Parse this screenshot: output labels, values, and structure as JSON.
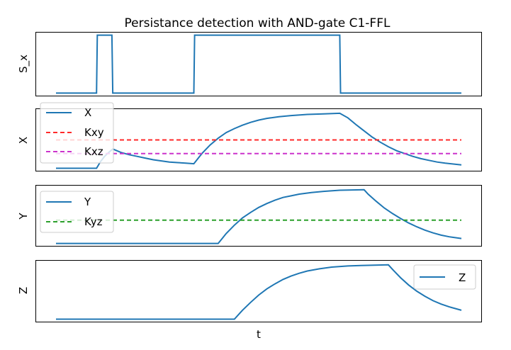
{
  "chart_data": {
    "type": "line",
    "title": "Persistance detection with AND-gate C1-FFL",
    "xlabel": "t",
    "grid": false,
    "x_range": [
      0,
      100
    ],
    "panels": [
      {
        "id": "sx",
        "ylabel": "S_x",
        "ylim": [
          -0.05,
          1.05
        ],
        "legend": null,
        "series": [
          {
            "name": "",
            "color": "#1f77b4",
            "style": "solid",
            "points": [
              [
                0,
                0
              ],
              [
                10,
                0
              ],
              [
                10.2,
                1
              ],
              [
                13.8,
                1
              ],
              [
                14,
                0
              ],
              [
                34,
                0
              ],
              [
                34.2,
                1
              ],
              [
                70,
                1
              ],
              [
                70.2,
                0
              ],
              [
                100,
                0
              ]
            ]
          }
        ]
      },
      {
        "id": "x",
        "ylabel": "X",
        "ylim": [
          -0.05,
          1.05
        ],
        "legend": "upper-left",
        "series": [
          {
            "name": "X",
            "color": "#1f77b4",
            "style": "solid",
            "points": [
              [
                0,
                0
              ],
              [
                10,
                0
              ],
              [
                11,
                0.12
              ],
              [
                12,
                0.21
              ],
              [
                13,
                0.28
              ],
              [
                14,
                0.34
              ],
              [
                16,
                0.28
              ],
              [
                18,
                0.24
              ],
              [
                20,
                0.21
              ],
              [
                22,
                0.18
              ],
              [
                24,
                0.15
              ],
              [
                26,
                0.13
              ],
              [
                28,
                0.11
              ],
              [
                30,
                0.1
              ],
              [
                32,
                0.09
              ],
              [
                34,
                0.08
              ],
              [
                35,
                0.17
              ],
              [
                36,
                0.26
              ],
              [
                38,
                0.41
              ],
              [
                40,
                0.53
              ],
              [
                42,
                0.63
              ],
              [
                44,
                0.7
              ],
              [
                46,
                0.76
              ],
              [
                48,
                0.81
              ],
              [
                50,
                0.85
              ],
              [
                52,
                0.88
              ],
              [
                55,
                0.91
              ],
              [
                58,
                0.93
              ],
              [
                62,
                0.95
              ],
              [
                66,
                0.96
              ],
              [
                70,
                0.97
              ],
              [
                72,
                0.89
              ],
              [
                74,
                0.77
              ],
              [
                76,
                0.66
              ],
              [
                78,
                0.55
              ],
              [
                80,
                0.46
              ],
              [
                82,
                0.38
              ],
              [
                84,
                0.31
              ],
              [
                86,
                0.26
              ],
              [
                88,
                0.21
              ],
              [
                90,
                0.17
              ],
              [
                92,
                0.14
              ],
              [
                94,
                0.11
              ],
              [
                96,
                0.09
              ],
              [
                100,
                0.06
              ]
            ]
          },
          {
            "name": "Kxy",
            "color": "#ff2a2a",
            "style": "dashed",
            "points": [
              [
                0,
                0.5
              ],
              [
                100,
                0.5
              ]
            ]
          },
          {
            "name": "Kxz",
            "color": "#cc33cc",
            "style": "dashed",
            "points": [
              [
                0,
                0.26
              ],
              [
                100,
                0.26
              ]
            ]
          }
        ]
      },
      {
        "id": "y",
        "ylabel": "Y",
        "ylim": [
          -0.05,
          1.05
        ],
        "legend": "upper-left",
        "series": [
          {
            "name": "Y",
            "color": "#1f77b4",
            "style": "solid",
            "points": [
              [
                0,
                0
              ],
              [
                40,
                0
              ],
              [
                41,
                0.09
              ],
              [
                42,
                0.18
              ],
              [
                44,
                0.33
              ],
              [
                46,
                0.46
              ],
              [
                48,
                0.56
              ],
              [
                50,
                0.65
              ],
              [
                52,
                0.72
              ],
              [
                54,
                0.78
              ],
              [
                56,
                0.83
              ],
              [
                58,
                0.86
              ],
              [
                60,
                0.89
              ],
              [
                63,
                0.92
              ],
              [
                66,
                0.94
              ],
              [
                70,
                0.96
              ],
              [
                76,
                0.97
              ],
              [
                77,
                0.89
              ],
              [
                79,
                0.76
              ],
              [
                81,
                0.64
              ],
              [
                83,
                0.54
              ],
              [
                85,
                0.45
              ],
              [
                87,
                0.37
              ],
              [
                89,
                0.3
              ],
              [
                91,
                0.24
              ],
              [
                93,
                0.19
              ],
              [
                95,
                0.15
              ],
              [
                97,
                0.12
              ],
              [
                100,
                0.09
              ]
            ]
          },
          {
            "name": "Kyz",
            "color": "#2ca02c",
            "style": "dashed",
            "points": [
              [
                0,
                0.42
              ],
              [
                100,
                0.42
              ]
            ]
          }
        ]
      },
      {
        "id": "z",
        "ylabel": "Z",
        "ylim": [
          -0.05,
          1.05
        ],
        "legend": "right",
        "series": [
          {
            "name": "Z",
            "color": "#1f77b4",
            "style": "solid",
            "points": [
              [
                0,
                0
              ],
              [
                44,
                0
              ],
              [
                45,
                0.08
              ],
              [
                46,
                0.16
              ],
              [
                48,
                0.3
              ],
              [
                50,
                0.43
              ],
              [
                52,
                0.54
              ],
              [
                54,
                0.63
              ],
              [
                56,
                0.71
              ],
              [
                58,
                0.77
              ],
              [
                60,
                0.82
              ],
              [
                62,
                0.86
              ],
              [
                65,
                0.9
              ],
              [
                68,
                0.93
              ],
              [
                72,
                0.95
              ],
              [
                76,
                0.96
              ],
              [
                82,
                0.97
              ],
              [
                83,
                0.89
              ],
              [
                85,
                0.74
              ],
              [
                87,
                0.61
              ],
              [
                89,
                0.5
              ],
              [
                91,
                0.41
              ],
              [
                93,
                0.33
              ],
              [
                95,
                0.27
              ],
              [
                97,
                0.22
              ],
              [
                100,
                0.16
              ]
            ]
          }
        ]
      }
    ]
  }
}
